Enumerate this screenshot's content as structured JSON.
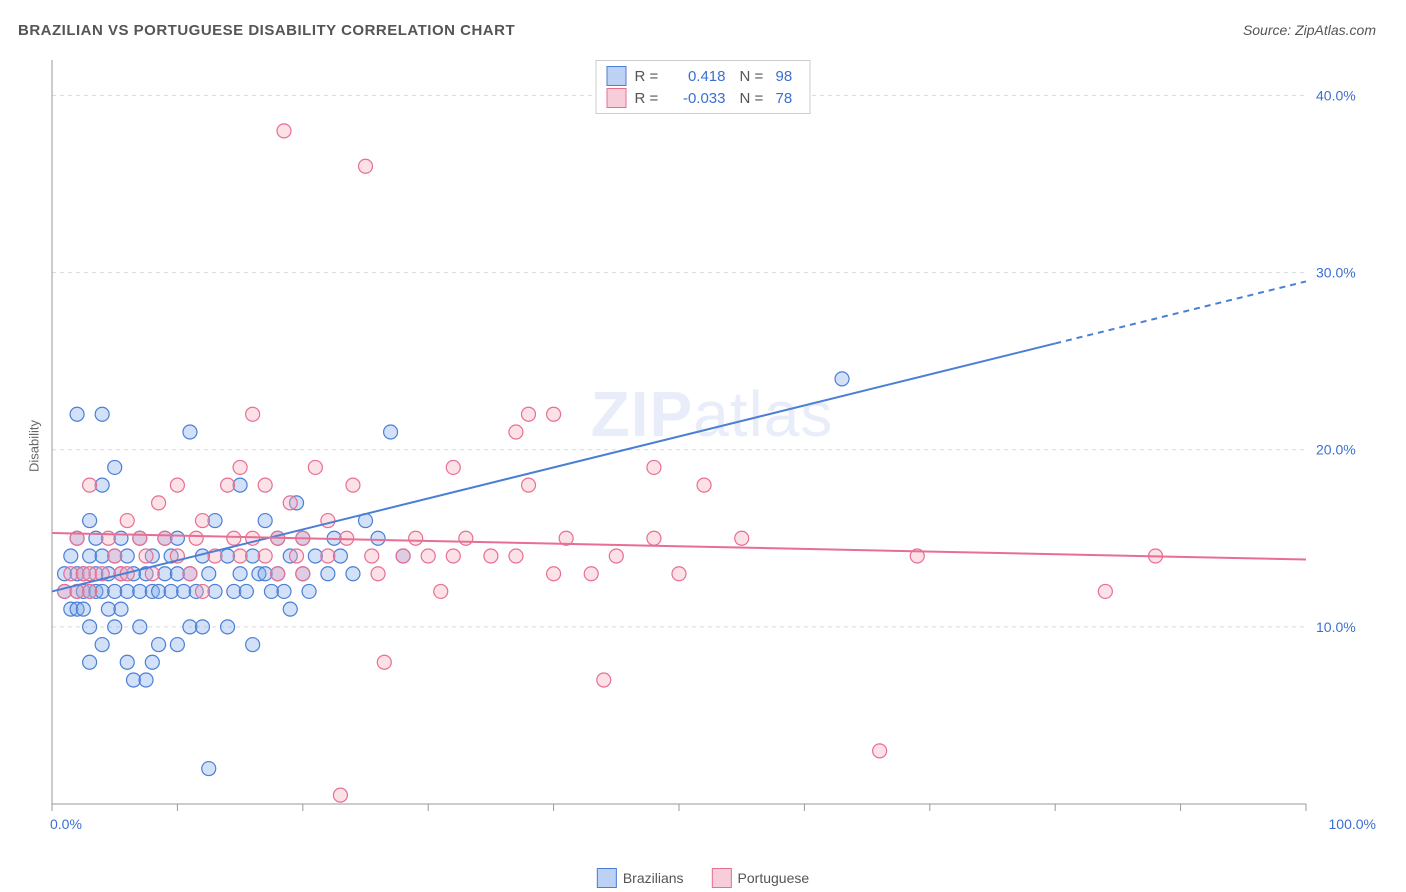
{
  "title": "BRAZILIAN VS PORTUGUESE DISABILITY CORRELATION CHART",
  "source": "Source: ZipAtlas.com",
  "ylabel": "Disability",
  "watermark_a": "ZIP",
  "watermark_b": "atlas",
  "chart": {
    "type": "scatter",
    "background_color": "#ffffff",
    "grid_color": "#d9d9d9",
    "axis_color": "#999999",
    "xlim": [
      0,
      100
    ],
    "ylim": [
      0,
      42
    ],
    "x_ticks": [
      0,
      10,
      20,
      30,
      40,
      50,
      60,
      70,
      80,
      90,
      100
    ],
    "y_gridlines": [
      10,
      20,
      30,
      40
    ],
    "y_tick_labels": [
      "10.0%",
      "20.0%",
      "30.0%",
      "40.0%"
    ],
    "x_min_label": "0.0%",
    "x_max_label": "100.0%",
    "marker_radius": 7,
    "marker_fill_opacity": 0.35,
    "marker_stroke_width": 1.2,
    "trend_line_width": 2,
    "series": [
      {
        "name": "Brazilians",
        "color_fill": "#7fa8e8",
        "color_stroke": "#4b7fd6",
        "trend": {
          "x1": 0,
          "y1": 12,
          "x2": 80,
          "y2": 26,
          "x2_dash": 100,
          "y2_dash": 29.5
        },
        "points": [
          [
            1,
            12
          ],
          [
            1,
            13
          ],
          [
            1.5,
            11
          ],
          [
            1.5,
            14
          ],
          [
            2,
            12
          ],
          [
            2,
            13
          ],
          [
            2,
            11
          ],
          [
            2,
            15
          ],
          [
            2,
            22
          ],
          [
            2.5,
            12
          ],
          [
            2.5,
            13
          ],
          [
            2.5,
            11
          ],
          [
            3,
            10
          ],
          [
            3,
            12
          ],
          [
            3,
            14
          ],
          [
            3,
            16
          ],
          [
            3,
            8
          ],
          [
            3.5,
            12
          ],
          [
            3.5,
            13
          ],
          [
            3.5,
            15
          ],
          [
            4,
            12
          ],
          [
            4,
            14
          ],
          [
            4,
            9
          ],
          [
            4,
            18
          ],
          [
            4,
            22
          ],
          [
            4.5,
            11
          ],
          [
            4.5,
            13
          ],
          [
            5,
            12
          ],
          [
            5,
            14
          ],
          [
            5,
            10
          ],
          [
            5,
            19
          ],
          [
            5.5,
            11
          ],
          [
            5.5,
            13
          ],
          [
            5.5,
            15
          ],
          [
            6,
            12
          ],
          [
            6,
            14
          ],
          [
            6,
            8
          ],
          [
            6.5,
            7
          ],
          [
            6.5,
            13
          ],
          [
            7,
            12
          ],
          [
            7,
            15
          ],
          [
            7,
            10
          ],
          [
            7.5,
            7
          ],
          [
            7.5,
            13
          ],
          [
            8,
            8
          ],
          [
            8,
            12
          ],
          [
            8,
            14
          ],
          [
            8.5,
            9
          ],
          [
            8.5,
            12
          ],
          [
            9,
            13
          ],
          [
            9,
            15
          ],
          [
            9.5,
            12
          ],
          [
            9.5,
            14
          ],
          [
            10,
            13
          ],
          [
            10,
            9
          ],
          [
            10,
            15
          ],
          [
            10.5,
            12
          ],
          [
            11,
            10
          ],
          [
            11,
            13
          ],
          [
            11,
            21
          ],
          [
            11.5,
            12
          ],
          [
            12,
            14
          ],
          [
            12,
            10
          ],
          [
            12.5,
            13
          ],
          [
            12.5,
            2
          ],
          [
            13,
            12
          ],
          [
            13,
            16
          ],
          [
            14,
            14
          ],
          [
            14,
            10
          ],
          [
            14.5,
            12
          ],
          [
            15,
            18
          ],
          [
            15,
            13
          ],
          [
            15.5,
            12
          ],
          [
            16,
            14
          ],
          [
            16,
            9
          ],
          [
            16.5,
            13
          ],
          [
            17,
            16
          ],
          [
            17,
            13
          ],
          [
            17.5,
            12
          ],
          [
            18,
            15
          ],
          [
            18,
            13
          ],
          [
            18.5,
            12
          ],
          [
            19,
            14
          ],
          [
            19,
            11
          ],
          [
            19.5,
            17
          ],
          [
            20,
            13
          ],
          [
            20,
            15
          ],
          [
            20.5,
            12
          ],
          [
            21,
            14
          ],
          [
            22,
            13
          ],
          [
            22.5,
            15
          ],
          [
            23,
            14
          ],
          [
            24,
            13
          ],
          [
            25,
            16
          ],
          [
            26,
            15
          ],
          [
            27,
            21
          ],
          [
            28,
            14
          ],
          [
            63,
            24
          ]
        ]
      },
      {
        "name": "Portuguese",
        "color_fill": "#f5a8bb",
        "color_stroke": "#e76f94",
        "trend": {
          "x1": 0,
          "y1": 15.3,
          "x2": 100,
          "y2": 13.8
        },
        "points": [
          [
            1,
            12
          ],
          [
            1.5,
            13
          ],
          [
            2,
            12
          ],
          [
            2,
            15
          ],
          [
            2.5,
            13
          ],
          [
            3,
            12
          ],
          [
            3,
            18
          ],
          [
            3,
            13
          ],
          [
            4,
            13
          ],
          [
            4.5,
            15
          ],
          [
            5,
            14
          ],
          [
            5.5,
            13
          ],
          [
            6,
            16
          ],
          [
            6,
            13
          ],
          [
            7,
            15
          ],
          [
            7.5,
            14
          ],
          [
            8,
            13
          ],
          [
            8.5,
            17
          ],
          [
            9,
            15
          ],
          [
            10,
            14
          ],
          [
            10,
            18
          ],
          [
            11,
            13
          ],
          [
            11.5,
            15
          ],
          [
            12,
            16
          ],
          [
            12,
            12
          ],
          [
            13,
            14
          ],
          [
            14,
            18
          ],
          [
            14.5,
            15
          ],
          [
            15,
            14
          ],
          [
            15,
            19
          ],
          [
            16,
            15
          ],
          [
            16,
            22
          ],
          [
            17,
            14
          ],
          [
            17,
            18
          ],
          [
            18,
            15
          ],
          [
            18,
            13
          ],
          [
            18.5,
            38
          ],
          [
            19,
            17
          ],
          [
            19.5,
            14
          ],
          [
            20,
            15
          ],
          [
            20,
            13
          ],
          [
            21,
            19
          ],
          [
            22,
            14
          ],
          [
            22,
            16
          ],
          [
            23,
            0.5
          ],
          [
            23.5,
            15
          ],
          [
            24,
            18
          ],
          [
            25,
            36
          ],
          [
            25.5,
            14
          ],
          [
            26,
            13
          ],
          [
            26.5,
            8
          ],
          [
            28,
            14
          ],
          [
            29,
            15
          ],
          [
            30,
            14
          ],
          [
            31,
            12
          ],
          [
            32,
            14
          ],
          [
            32,
            19
          ],
          [
            33,
            15
          ],
          [
            35,
            14
          ],
          [
            37,
            21
          ],
          [
            37,
            14
          ],
          [
            38,
            18
          ],
          [
            38,
            22
          ],
          [
            40,
            13
          ],
          [
            40,
            22
          ],
          [
            41,
            15
          ],
          [
            43,
            13
          ],
          [
            44,
            7
          ],
          [
            45,
            14
          ],
          [
            48,
            19
          ],
          [
            48,
            15
          ],
          [
            50,
            13
          ],
          [
            52,
            18
          ],
          [
            55,
            15
          ],
          [
            66,
            3
          ],
          [
            69,
            14
          ],
          [
            84,
            12
          ],
          [
            88,
            14
          ]
        ]
      }
    ],
    "legend_top": {
      "rows": [
        {
          "swatch_fill": "#bcd1f3",
          "swatch_stroke": "#4b7fd6",
          "r": "0.418",
          "n": "98"
        },
        {
          "swatch_fill": "#f7cdd9",
          "swatch_stroke": "#e76f94",
          "r": "-0.033",
          "n": "78"
        }
      ],
      "r_label": "R =",
      "n_label": "N ="
    },
    "legend_bottom": [
      {
        "swatch_fill": "#bcd1f3",
        "swatch_stroke": "#4b7fd6",
        "label": "Brazilians"
      },
      {
        "swatch_fill": "#f7cdd9",
        "swatch_stroke": "#e76f94",
        "label": "Portuguese"
      }
    ]
  }
}
